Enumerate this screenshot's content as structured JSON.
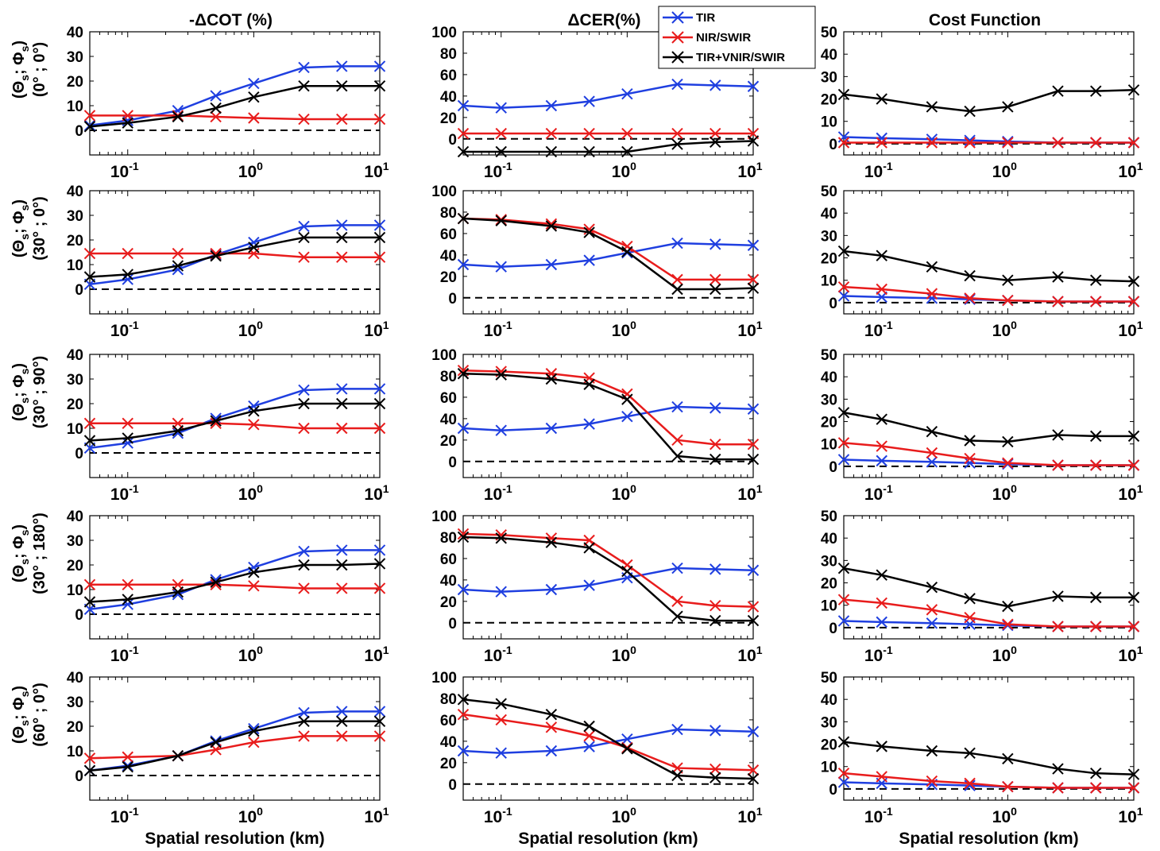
{
  "figure": {
    "column_titles": [
      "-ΔCOT (%)",
      "ΔCER(%)",
      "Cost Function"
    ],
    "xlabel": "Spatial resolution (km)",
    "row_labels": [
      {
        "line1": "(Θ",
        "s1": "s",
        "mid": "; Φ",
        "s2": "s",
        "end": ")",
        "line2": "(0° ; 0°)"
      },
      {
        "line1": "(Θ",
        "s1": "s",
        "mid": "; Φ",
        "s2": "s",
        "end": ")",
        "line2": "(30° ; 0°)"
      },
      {
        "line1": "(Θ",
        "s1": "s",
        "mid": "; Φ",
        "s2": "s",
        "end": ")",
        "line2": "(30° ; 90°)"
      },
      {
        "line1": "(Θ",
        "s1": "s",
        "mid": "; Φ",
        "s2": "s",
        "end": ")",
        "line2": "(30° ; 180°)"
      },
      {
        "line1": "(Θ",
        "s1": "s",
        "mid": "; Φ",
        "s2": "s",
        "end": ")",
        "line2": "(60° ; 0°)"
      }
    ],
    "legend": [
      {
        "name": "TIR",
        "color": "#1f3fe0"
      },
      {
        "name": "NIR/SWIR",
        "color": "#e81c1c"
      },
      {
        "name": "TIR+VNIR/SWIR",
        "color": "#000000"
      }
    ],
    "x_tick_labels": [
      {
        "base": "10",
        "exp": "-1",
        "value": 0.1
      },
      {
        "base": "10",
        "exp": "0",
        "value": 1
      },
      {
        "base": "10",
        "exp": "1",
        "value": 10
      }
    ],
    "x_scale": "log",
    "xlim": [
      0.05,
      10
    ],
    "grid": false,
    "reference_line": "dashed black line at 0"
  },
  "chart_data": [
    {
      "type": "line",
      "row": 0,
      "col": 0,
      "ylim": [
        -10,
        40
      ],
      "yticks": [
        0,
        10,
        20,
        30,
        40
      ],
      "x": [
        0.05,
        0.1,
        0.25,
        0.5,
        1,
        2.5,
        5,
        10
      ],
      "series": [
        {
          "name": "TIR",
          "values": [
            2,
            4,
            8,
            14,
            19,
            25.5,
            26,
            26
          ]
        },
        {
          "name": "NIR/SWIR",
          "values": [
            6,
            6,
            6,
            5.5,
            5,
            4.5,
            4.5,
            4.5
          ]
        },
        {
          "name": "TIR+VNIR/SWIR",
          "values": [
            1.5,
            3,
            5.5,
            9,
            13.5,
            18,
            18,
            18
          ]
        }
      ]
    },
    {
      "type": "line",
      "row": 0,
      "col": 1,
      "ylim": [
        -15,
        100
      ],
      "yticks": [
        0,
        20,
        40,
        60,
        80,
        100
      ],
      "x": [
        0.05,
        0.1,
        0.25,
        0.5,
        1,
        2.5,
        5,
        10
      ],
      "series": [
        {
          "name": "TIR",
          "values": [
            31,
            29,
            31,
            35,
            42,
            51,
            50,
            49
          ]
        },
        {
          "name": "NIR/SWIR",
          "values": [
            5,
            5,
            5,
            5,
            5,
            5,
            5,
            5
          ]
        },
        {
          "name": "TIR+VNIR/SWIR",
          "values": [
            -12,
            -12,
            -12,
            -12,
            -12,
            -5,
            -3,
            -2
          ]
        }
      ]
    },
    {
      "type": "line",
      "row": 0,
      "col": 2,
      "ylim": [
        -5,
        50
      ],
      "yticks": [
        0,
        10,
        20,
        30,
        40,
        50
      ],
      "x": [
        0.05,
        0.1,
        0.25,
        0.5,
        1,
        2.5,
        5,
        10
      ],
      "series": [
        {
          "name": "TIR",
          "values": [
            3,
            2.5,
            2,
            1.5,
            1,
            0.5,
            0.5,
            0.5
          ]
        },
        {
          "name": "NIR/SWIR",
          "values": [
            0.5,
            0.5,
            0.5,
            0.5,
            0.5,
            0.5,
            0.5,
            0.5
          ]
        },
        {
          "name": "TIR+VNIR/SWIR",
          "values": [
            22,
            20,
            16.5,
            14.5,
            16.5,
            23.5,
            23.5,
            24
          ]
        }
      ]
    },
    {
      "type": "line",
      "row": 1,
      "col": 0,
      "ylim": [
        -10,
        40
      ],
      "yticks": [
        0,
        10,
        20,
        30,
        40
      ],
      "x": [
        0.05,
        0.1,
        0.25,
        0.5,
        1,
        2.5,
        5,
        10
      ],
      "series": [
        {
          "name": "TIR",
          "values": [
            2,
            4,
            8,
            14,
            19,
            25.5,
            26,
            26
          ]
        },
        {
          "name": "NIR/SWIR",
          "values": [
            14.5,
            14.5,
            14.5,
            14.5,
            14.5,
            13,
            13,
            13
          ]
        },
        {
          "name": "TIR+VNIR/SWIR",
          "values": [
            5,
            6,
            9.5,
            13.5,
            17,
            21,
            21,
            21
          ]
        }
      ]
    },
    {
      "type": "line",
      "row": 1,
      "col": 1,
      "ylim": [
        -15,
        100
      ],
      "yticks": [
        0,
        20,
        40,
        60,
        80,
        100
      ],
      "x": [
        0.05,
        0.1,
        0.25,
        0.5,
        1,
        2.5,
        5,
        10
      ],
      "series": [
        {
          "name": "TIR",
          "values": [
            31,
            29,
            31,
            35,
            42,
            51,
            50,
            49
          ]
        },
        {
          "name": "NIR/SWIR",
          "values": [
            74,
            73,
            69,
            64,
            48,
            17,
            17,
            17
          ]
        },
        {
          "name": "TIR+VNIR/SWIR",
          "values": [
            74,
            72,
            67,
            61,
            43,
            8,
            8,
            9
          ]
        }
      ]
    },
    {
      "type": "line",
      "row": 1,
      "col": 2,
      "ylim": [
        -5,
        50
      ],
      "yticks": [
        0,
        10,
        20,
        30,
        40,
        50
      ],
      "x": [
        0.05,
        0.1,
        0.25,
        0.5,
        1,
        2.5,
        5,
        10
      ],
      "series": [
        {
          "name": "TIR",
          "values": [
            3,
            2.5,
            2,
            1.5,
            1,
            0.5,
            0.5,
            0.5
          ]
        },
        {
          "name": "NIR/SWIR",
          "values": [
            7,
            6,
            4,
            2,
            1,
            0.5,
            0.5,
            0.5
          ]
        },
        {
          "name": "TIR+VNIR/SWIR",
          "values": [
            23,
            21,
            16,
            12,
            10,
            11.5,
            10,
            9.5
          ]
        }
      ]
    },
    {
      "type": "line",
      "row": 2,
      "col": 0,
      "ylim": [
        -10,
        40
      ],
      "yticks": [
        0,
        10,
        20,
        30,
        40
      ],
      "x": [
        0.05,
        0.1,
        0.25,
        0.5,
        1,
        2.5,
        5,
        10
      ],
      "series": [
        {
          "name": "TIR",
          "values": [
            2,
            4,
            8,
            14,
            19,
            25.5,
            26,
            26
          ]
        },
        {
          "name": "NIR/SWIR",
          "values": [
            12,
            12,
            12,
            12,
            11.5,
            10,
            10,
            10
          ]
        },
        {
          "name": "TIR+VNIR/SWIR",
          "values": [
            5,
            6,
            9,
            13,
            17,
            20,
            20,
            20
          ]
        }
      ]
    },
    {
      "type": "line",
      "row": 2,
      "col": 1,
      "ylim": [
        -15,
        100
      ],
      "yticks": [
        0,
        20,
        40,
        60,
        80,
        100
      ],
      "x": [
        0.05,
        0.1,
        0.25,
        0.5,
        1,
        2.5,
        5,
        10
      ],
      "series": [
        {
          "name": "TIR",
          "values": [
            31,
            29,
            31,
            35,
            42,
            51,
            50,
            49
          ]
        },
        {
          "name": "NIR/SWIR",
          "values": [
            85,
            84,
            82,
            78,
            63,
            20,
            16,
            16
          ]
        },
        {
          "name": "TIR+VNIR/SWIR",
          "values": [
            82,
            81,
            77,
            72,
            58,
            5,
            2,
            2
          ]
        }
      ]
    },
    {
      "type": "line",
      "row": 2,
      "col": 2,
      "ylim": [
        -5,
        50
      ],
      "yticks": [
        0,
        10,
        20,
        30,
        40,
        50
      ],
      "x": [
        0.05,
        0.1,
        0.25,
        0.5,
        1,
        2.5,
        5,
        10
      ],
      "series": [
        {
          "name": "TIR",
          "values": [
            3,
            2.5,
            2,
            1.5,
            1,
            0.5,
            0.5,
            0.5
          ]
        },
        {
          "name": "NIR/SWIR",
          "values": [
            10.5,
            9,
            6,
            3.5,
            1.5,
            0.5,
            0.5,
            0.5
          ]
        },
        {
          "name": "TIR+VNIR/SWIR",
          "values": [
            24,
            21,
            15.5,
            11.5,
            11,
            14,
            13.5,
            13.5
          ]
        }
      ]
    },
    {
      "type": "line",
      "row": 3,
      "col": 0,
      "ylim": [
        -10,
        40
      ],
      "yticks": [
        0,
        10,
        20,
        30,
        40
      ],
      "x": [
        0.05,
        0.1,
        0.25,
        0.5,
        1,
        2.5,
        5,
        10
      ],
      "series": [
        {
          "name": "TIR",
          "values": [
            2,
            4,
            8,
            14,
            19,
            25.5,
            26,
            26
          ]
        },
        {
          "name": "NIR/SWIR",
          "values": [
            12,
            12,
            12,
            12,
            11.5,
            10.5,
            10.5,
            10.5
          ]
        },
        {
          "name": "TIR+VNIR/SWIR",
          "values": [
            5,
            6,
            9,
            13,
            17,
            20,
            20,
            20.5
          ]
        }
      ]
    },
    {
      "type": "line",
      "row": 3,
      "col": 1,
      "ylim": [
        -15,
        100
      ],
      "yticks": [
        0,
        20,
        40,
        60,
        80,
        100
      ],
      "x": [
        0.05,
        0.1,
        0.25,
        0.5,
        1,
        2.5,
        5,
        10
      ],
      "series": [
        {
          "name": "TIR",
          "values": [
            31,
            29,
            31,
            35,
            42,
            51,
            50,
            49
          ]
        },
        {
          "name": "NIR/SWIR",
          "values": [
            83,
            82,
            79,
            77,
            54,
            20,
            16,
            15
          ]
        },
        {
          "name": "TIR+VNIR/SWIR",
          "values": [
            80,
            79,
            75,
            70,
            48,
            6,
            2,
            2
          ]
        }
      ]
    },
    {
      "type": "line",
      "row": 3,
      "col": 2,
      "ylim": [
        -5,
        50
      ],
      "yticks": [
        0,
        10,
        20,
        30,
        40,
        50
      ],
      "x": [
        0.05,
        0.1,
        0.25,
        0.5,
        1,
        2.5,
        5,
        10
      ],
      "series": [
        {
          "name": "TIR",
          "values": [
            3,
            2.5,
            2,
            1.5,
            1,
            0.5,
            0.5,
            0.5
          ]
        },
        {
          "name": "NIR/SWIR",
          "values": [
            12.5,
            11,
            8,
            4.5,
            1.5,
            0.5,
            0.5,
            0.5
          ]
        },
        {
          "name": "TIR+VNIR/SWIR",
          "values": [
            26.5,
            23.5,
            18,
            13,
            9.5,
            14,
            13.5,
            13.5
          ]
        }
      ]
    },
    {
      "type": "line",
      "row": 4,
      "col": 0,
      "ylim": [
        -10,
        40
      ],
      "yticks": [
        0,
        10,
        20,
        30,
        40
      ],
      "x": [
        0.05,
        0.1,
        0.25,
        0.5,
        1,
        2.5,
        5,
        10
      ],
      "series": [
        {
          "name": "TIR",
          "values": [
            2,
            4,
            8,
            14,
            19,
            25.5,
            26,
            26
          ]
        },
        {
          "name": "NIR/SWIR",
          "values": [
            7,
            7.5,
            8,
            10.5,
            13.5,
            16,
            16,
            16
          ]
        },
        {
          "name": "TIR+VNIR/SWIR",
          "values": [
            2,
            3.5,
            8,
            13.5,
            18,
            22,
            22,
            22
          ]
        }
      ]
    },
    {
      "type": "line",
      "row": 4,
      "col": 1,
      "ylim": [
        -15,
        100
      ],
      "yticks": [
        0,
        20,
        40,
        60,
        80,
        100
      ],
      "x": [
        0.05,
        0.1,
        0.25,
        0.5,
        1,
        2.5,
        5,
        10
      ],
      "series": [
        {
          "name": "TIR",
          "values": [
            31,
            29,
            31,
            35,
            42,
            51,
            50,
            49
          ]
        },
        {
          "name": "NIR/SWIR",
          "values": [
            65,
            60,
            53,
            45,
            34,
            15,
            14,
            13
          ]
        },
        {
          "name": "TIR+VNIR/SWIR",
          "values": [
            79,
            75,
            65,
            54,
            33,
            8,
            6,
            5
          ]
        }
      ]
    },
    {
      "type": "line",
      "row": 4,
      "col": 2,
      "ylim": [
        -5,
        50
      ],
      "yticks": [
        0,
        10,
        20,
        30,
        40,
        50
      ],
      "x": [
        0.05,
        0.1,
        0.25,
        0.5,
        1,
        2.5,
        5,
        10
      ],
      "series": [
        {
          "name": "TIR",
          "values": [
            3,
            2.5,
            2,
            1.5,
            1,
            0.5,
            0.5,
            0.5
          ]
        },
        {
          "name": "NIR/SWIR",
          "values": [
            7,
            5.5,
            3.5,
            2.5,
            1,
            0.5,
            0.5,
            0.5
          ]
        },
        {
          "name": "TIR+VNIR/SWIR",
          "values": [
            21,
            19,
            17,
            16,
            13.5,
            9,
            7,
            6.5
          ]
        }
      ]
    }
  ]
}
